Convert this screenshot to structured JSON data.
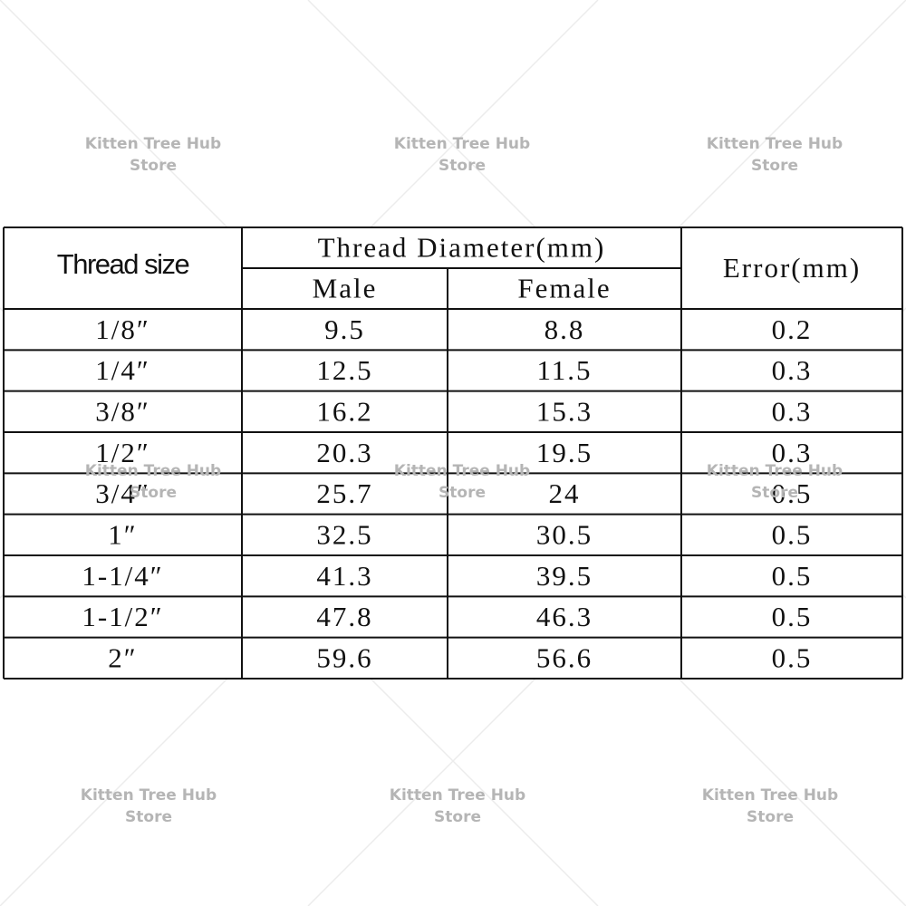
{
  "table": {
    "header": {
      "thread_size": "Thread size",
      "diameter": "Thread Diameter(mm)",
      "male": "Male",
      "female": "Female",
      "error": "Error(mm)"
    },
    "rows": [
      [
        "1/8″",
        "9.5",
        "8.8",
        "0.2"
      ],
      [
        "1/4″",
        "12.5",
        "11.5",
        "0.3"
      ],
      [
        "3/8″",
        "16.2",
        "15.3",
        "0.3"
      ],
      [
        "1/2″",
        "20.3",
        "19.5",
        "0.3"
      ],
      [
        "3/4″",
        "25.7",
        "24",
        "0.5"
      ],
      [
        "1″",
        "32.5",
        "30.5",
        "0.5"
      ],
      [
        "1-1/4″",
        "41.3",
        "39.5",
        "0.5"
      ],
      [
        "1-1/2″",
        "47.8",
        "46.3",
        "0.5"
      ],
      [
        "2″",
        "59.6",
        "56.6",
        "0.5"
      ]
    ]
  },
  "watermarks": [
    [
      "Kitten Tree Hub",
      "Store"
    ],
    [
      "Kitten Tree Hub",
      "Store"
    ],
    [
      "Kitten Tree Hub",
      "Store"
    ],
    [
      "Kitten Tree Hub",
      "Store"
    ],
    [
      "Kitten Tree Hub",
      "Store"
    ],
    [
      "Kitten Tree Hub",
      "Store"
    ],
    [
      "Kitten Tree Hub",
      "Store"
    ],
    [
      "Kitten Tree Hub",
      "Store"
    ],
    [
      "Kitten Tree Hub",
      "Store"
    ]
  ]
}
